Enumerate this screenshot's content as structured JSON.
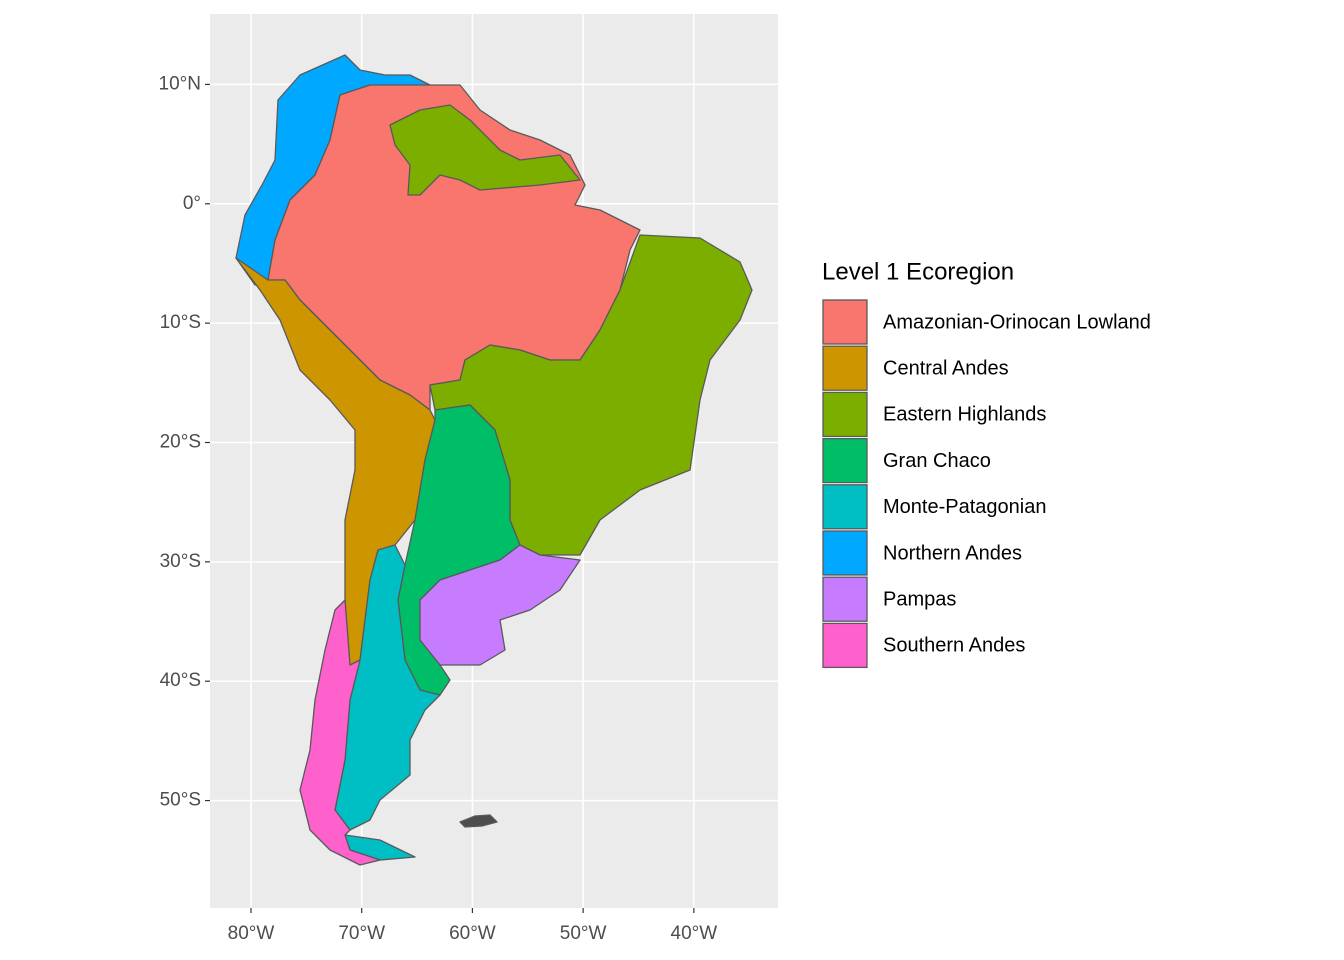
{
  "map": {
    "xlim": [
      -83.7,
      -32.4
    ],
    "ylim": [
      -59.0,
      15.9
    ],
    "xticks": [
      {
        "value": -80,
        "label": "80°W"
      },
      {
        "value": -70,
        "label": "70°W"
      },
      {
        "value": -60,
        "label": "60°W"
      },
      {
        "value": -50,
        "label": "50°W"
      },
      {
        "value": -40,
        "label": "40°W"
      }
    ],
    "yticks": [
      {
        "value": 10,
        "label": "10°N"
      },
      {
        "value": 0,
        "label": "0°"
      },
      {
        "value": -10,
        "label": "10°S"
      },
      {
        "value": -20,
        "label": "20°S"
      },
      {
        "value": -30,
        "label": "30°S"
      },
      {
        "value": -40,
        "label": "40°S"
      },
      {
        "value": -50,
        "label": "50°S"
      }
    ],
    "grid": true,
    "legend": {
      "title": "Level 1 Ecoregion",
      "entries": [
        {
          "name": "Amazonian-Orinocan Lowland",
          "color": "#f8766d"
        },
        {
          "name": "Central Andes",
          "color": "#cd9600"
        },
        {
          "name": "Eastern Highlands",
          "color": "#7cae00"
        },
        {
          "name": "Gran Chaco",
          "color": "#00be67"
        },
        {
          "name": "Monte-Patagonian",
          "color": "#00bfc4"
        },
        {
          "name": "Northern Andes",
          "color": "#00a9ff"
        },
        {
          "name": "Pampas",
          "color": "#c77cff"
        },
        {
          "name": "Southern Andes",
          "color": "#ff61cc"
        }
      ]
    }
  }
}
